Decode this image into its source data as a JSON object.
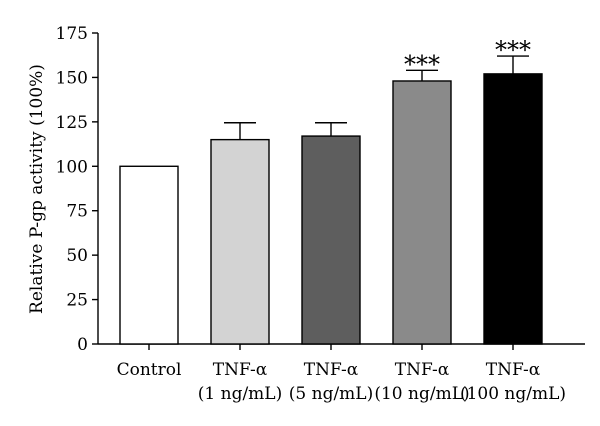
{
  "chart_data": {
    "type": "bar",
    "title": "",
    "xlabel": "",
    "ylabel": "Relative P-gp activity (100%)",
    "ylim": [
      0,
      175
    ],
    "yticks": [
      0,
      25,
      50,
      75,
      100,
      125,
      150,
      175
    ],
    "grid": false,
    "legend": "none",
    "categories": [
      [
        "Control"
      ],
      [
        "TNF-α",
        "(1 ng/mL)"
      ],
      [
        "TNF-α",
        "(5 ng/mL)"
      ],
      [
        "TNF-α",
        "(10 ng/mL)"
      ],
      [
        "TNF-α",
        "(100 ng/mL)"
      ]
    ],
    "values": [
      100,
      115,
      117,
      148,
      152
    ],
    "error": [
      0,
      9.5,
      7.5,
      6,
      10
    ],
    "significance": [
      "",
      "",
      "",
      "***",
      "***"
    ],
    "colors": [
      "#ffffff",
      "#d3d3d3",
      "#5e5e5e",
      "#8a8a8a",
      "#000000"
    ]
  }
}
